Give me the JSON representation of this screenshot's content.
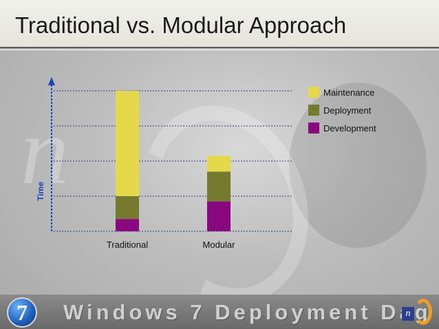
{
  "title": "Traditional vs. Modular Approach",
  "footer": "Windows 7 Deployment Dag",
  "logo_left_text": "7",
  "logo_right_text": "n",
  "colors": {
    "maintenance": "#e5d84a",
    "deployment": "#757a2e",
    "development": "#8a087f",
    "axis": "#1f3fbf",
    "gridline": "#2c3a8a"
  },
  "chart_data": {
    "type": "bar",
    "stacked": true,
    "title": "",
    "xlabel": "",
    "ylabel": "Time",
    "categories": [
      "Traditional",
      "Modular"
    ],
    "series": [
      {
        "name": "Development",
        "values": [
          0.35,
          0.85
        ]
      },
      {
        "name": "Deployment",
        "values": [
          0.65,
          0.85
        ]
      },
      {
        "name": "Maintenance",
        "values": [
          3.0,
          0.45
        ]
      }
    ],
    "ylim": [
      0,
      4
    ],
    "grid": true,
    "legend": "top-right",
    "y_tick_labels": false
  }
}
